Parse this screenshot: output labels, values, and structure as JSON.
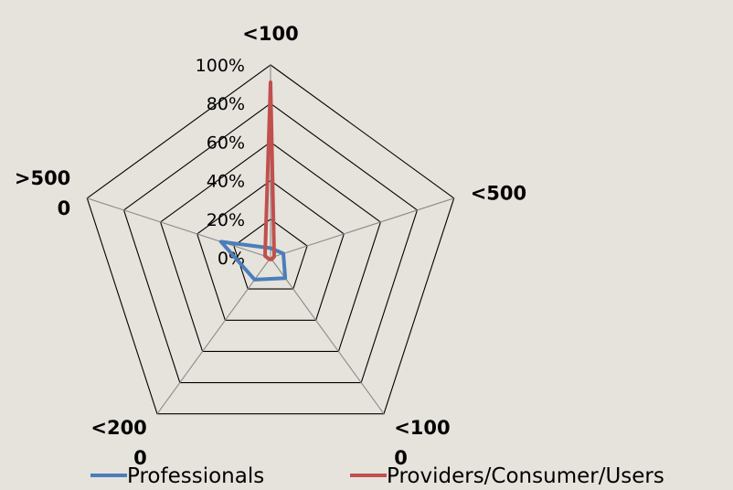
{
  "chart_data": {
    "type": "radar",
    "categories": [
      {
        "lines": [
          "<100"
        ]
      },
      {
        "lines": [
          "<500"
        ]
      },
      {
        "lines": [
          "<100",
          "0"
        ]
      },
      {
        "lines": [
          "<200",
          "0"
        ]
      },
      {
        "lines": [
          ">500",
          "0"
        ]
      }
    ],
    "category_names": [
      "<100",
      "<500",
      "<1000",
      "<2000",
      ">5000"
    ],
    "r_ticks": [
      "0%",
      "20%",
      "40%",
      "60%",
      "80%",
      "100%"
    ],
    "r_range": [
      0,
      100
    ],
    "grid": true,
    "series": [
      {
        "name": "Professionals",
        "color": "#4a7ebb",
        "values": [
          5,
          7,
          13,
          14,
          27
        ]
      },
      {
        "name": "Providers/Consumer/Users",
        "color": "#c0504d",
        "values": [
          91,
          2,
          1,
          1,
          3
        ]
      }
    ],
    "legend_position": "bottom"
  }
}
